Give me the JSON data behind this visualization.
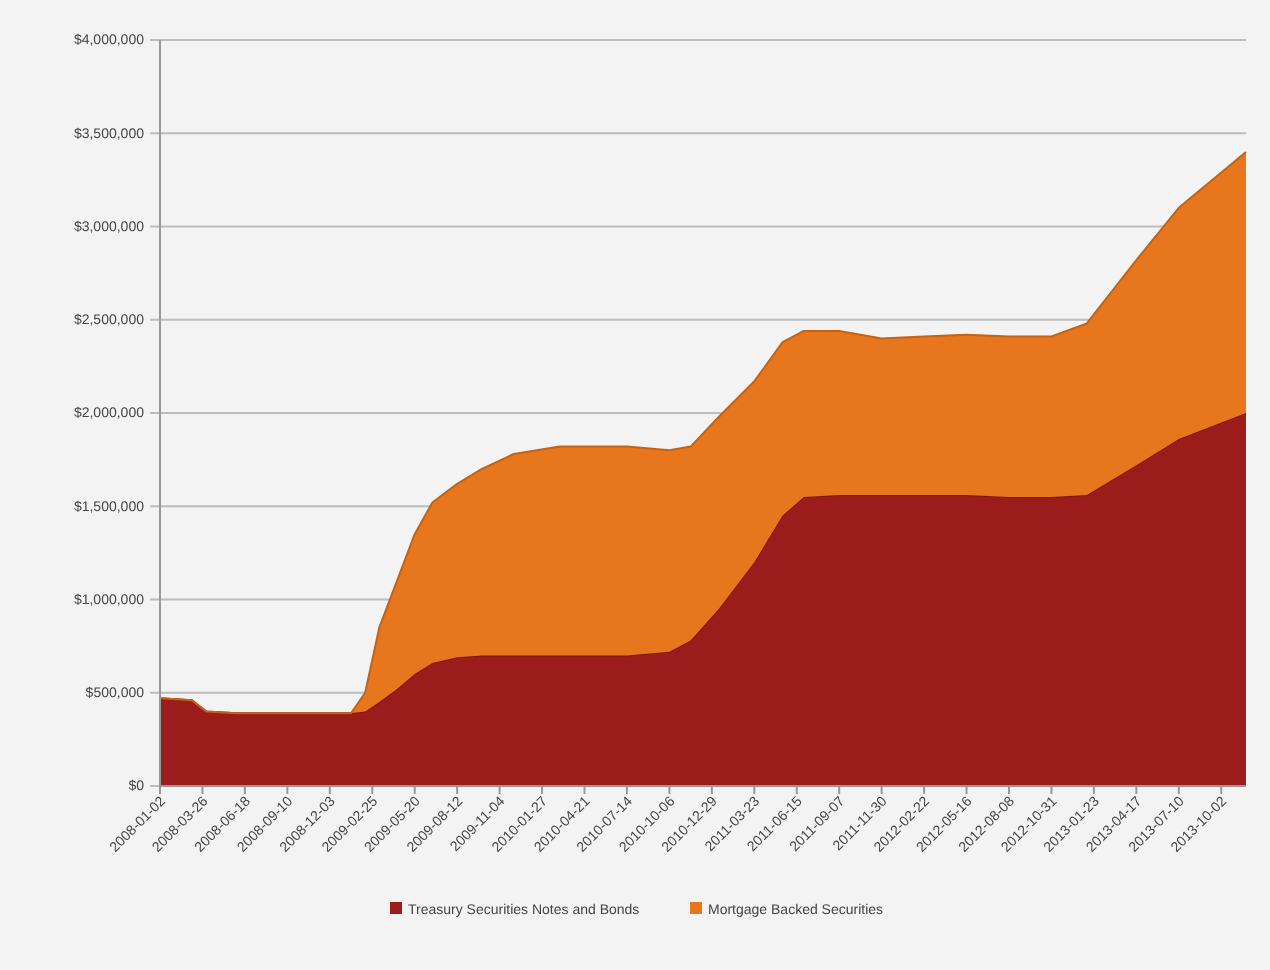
{
  "chart_data": {
    "type": "area",
    "stacked": true,
    "x": [
      "2008-01-02",
      "2008-03-05",
      "2008-04-02",
      "2008-06-01",
      "2009-01-14",
      "2009-02-11",
      "2009-03-11",
      "2009-04-15",
      "2009-05-20",
      "2009-06-24",
      "2009-08-12",
      "2009-09-30",
      "2009-12-02",
      "2010-03-03",
      "2010-07-14",
      "2010-10-06",
      "2010-11-17",
      "2011-01-12",
      "2011-03-23",
      "2011-05-18",
      "2011-06-29",
      "2011-09-07",
      "2011-11-30",
      "2012-02-22",
      "2012-05-16",
      "2012-08-08",
      "2012-10-31",
      "2013-01-09",
      "2013-04-17",
      "2013-07-10",
      "2013-11-20"
    ],
    "series": [
      {
        "name": "Treasury Securities Notes and Bonds",
        "color": "#9c1c1c",
        "values": [
          470000,
          460000,
          400000,
          390000,
          390000,
          400000,
          450000,
          520000,
          600000,
          660000,
          690000,
          700000,
          700000,
          700000,
          700000,
          720000,
          780000,
          950000,
          1200000,
          1450000,
          1550000,
          1560000,
          1560000,
          1560000,
          1560000,
          1550000,
          1550000,
          1560000,
          1720000,
          1860000,
          2000000
        ]
      },
      {
        "name": "Mortgage Backed Securities",
        "color": "#e8761c",
        "values": [
          0,
          0,
          0,
          0,
          0,
          100000,
          400000,
          580000,
          750000,
          860000,
          930000,
          1000000,
          1080000,
          1120000,
          1120000,
          1080000,
          1040000,
          1030000,
          970000,
          930000,
          890000,
          880000,
          840000,
          850000,
          860000,
          860000,
          860000,
          920000,
          1100000,
          1240000,
          1400000
        ]
      }
    ],
    "xlim": [
      "2008-01-02",
      "2013-11-20"
    ],
    "xticks": [
      "2008-01-02",
      "2008-03-26",
      "2008-06-18",
      "2008-09-10",
      "2008-12-03",
      "2009-02-25",
      "2009-05-20",
      "2009-08-12",
      "2009-11-04",
      "2010-01-27",
      "2010-04-21",
      "2010-07-14",
      "2010-10-06",
      "2010-12-29",
      "2011-03-23",
      "2011-06-15",
      "2011-09-07",
      "2011-11-30",
      "2012-02-22",
      "2012-05-16",
      "2012-08-08",
      "2012-10-31",
      "2013-01-23",
      "2013-04-17",
      "2013-07-10",
      "2013-10-02"
    ],
    "ylim": [
      0,
      4000000
    ],
    "yticks": [
      {
        "value": 0,
        "label": "$0"
      },
      {
        "value": 500000,
        "label": "$500,000"
      },
      {
        "value": 1000000,
        "label": "$1,000,000"
      },
      {
        "value": 1500000,
        "label": "$1,500,000"
      },
      {
        "value": 2000000,
        "label": "$2,000,000"
      },
      {
        "value": 2500000,
        "label": "$2,500,000"
      },
      {
        "value": 3000000,
        "label": "$3,000,000"
      },
      {
        "value": 3500000,
        "label": "$3,500,000"
      },
      {
        "value": 4000000,
        "label": "$4,000,000"
      }
    ],
    "grid": "y",
    "legend": "bottom"
  }
}
